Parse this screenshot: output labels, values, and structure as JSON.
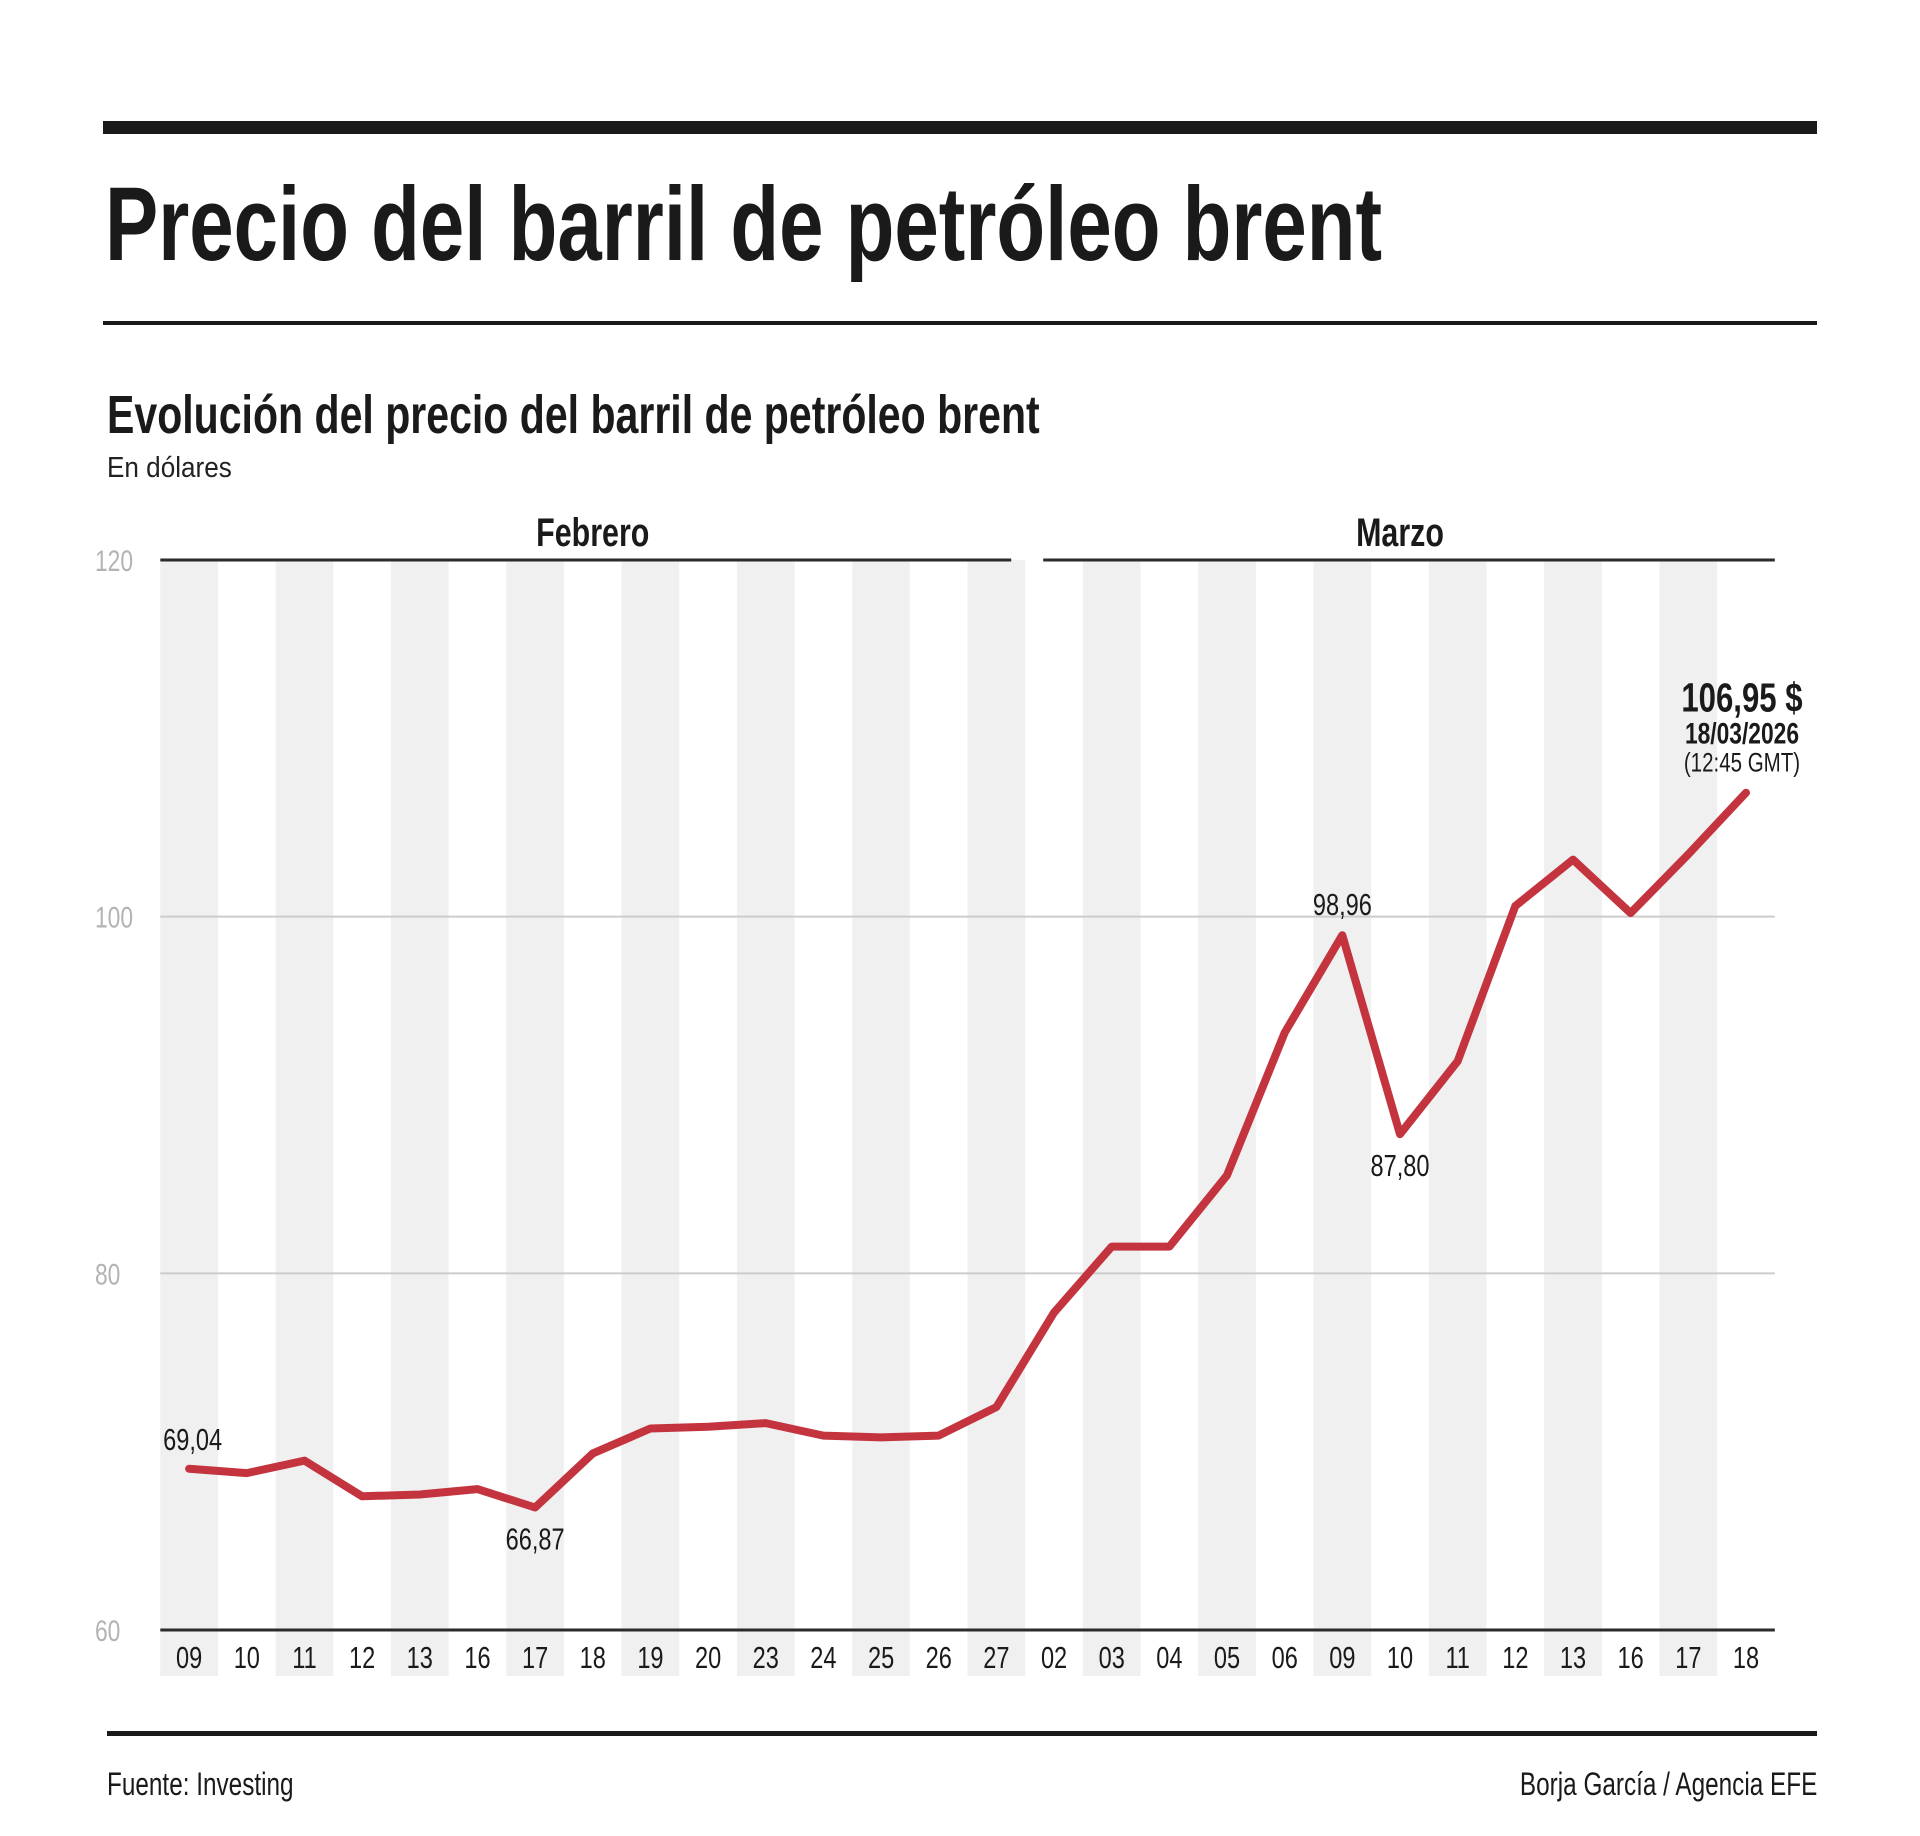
{
  "header": {
    "title": "Precio del barril de petróleo brent",
    "subtitle": "Evolución del precio del barril de petróleo brent",
    "units": "En dólares"
  },
  "footer": {
    "source": "Fuente: Investing",
    "credit": "Borja García / Agencia EFE"
  },
  "chart_data": {
    "type": "line",
    "title": "Evolución del precio del barril de petróleo brent",
    "units_label": "En dólares",
    "ylim": [
      60,
      120
    ],
    "yticks": [
      "120",
      "100",
      "80",
      "60"
    ],
    "grid": "horizontal",
    "legend": "none",
    "colors": {
      "line": "#c4343e",
      "stripe": "#f0f0f0",
      "axis_dark": "#2b2b2b",
      "grid_light": "#cccccc",
      "tick_label_gray": "#b3b3b3",
      "text_dark": "#1a1a1a"
    },
    "months": [
      {
        "label": "Febrero",
        "count": 15
      },
      {
        "label": "Marzo",
        "count": 13
      }
    ],
    "categories": [
      "09",
      "10",
      "11",
      "12",
      "13",
      "16",
      "17",
      "18",
      "19",
      "20",
      "23",
      "24",
      "25",
      "26",
      "27",
      "02",
      "03",
      "04",
      "05",
      "06",
      "09",
      "10",
      "11",
      "12",
      "13",
      "16",
      "17",
      "18"
    ],
    "values": [
      69.04,
      68.8,
      69.5,
      67.5,
      67.6,
      67.9,
      66.87,
      69.9,
      71.3,
      71.4,
      71.6,
      70.9,
      70.8,
      70.9,
      72.5,
      77.8,
      81.5,
      81.5,
      85.5,
      93.5,
      98.96,
      87.8,
      91.9,
      100.6,
      103.2,
      100.2,
      103.5,
      106.95
    ],
    "point_annotations": [
      {
        "index": 0,
        "label": "69,04",
        "position": "above-left"
      },
      {
        "index": 6,
        "label": "66,87",
        "position": "below"
      },
      {
        "index": 20,
        "label": "98,96",
        "position": "above"
      },
      {
        "index": 21,
        "label": "87,80",
        "position": "below"
      }
    ],
    "last_point_annotation": {
      "value": "106,95 $",
      "date": "18/03/2026",
      "time": "(12:45 GMT)"
    }
  }
}
